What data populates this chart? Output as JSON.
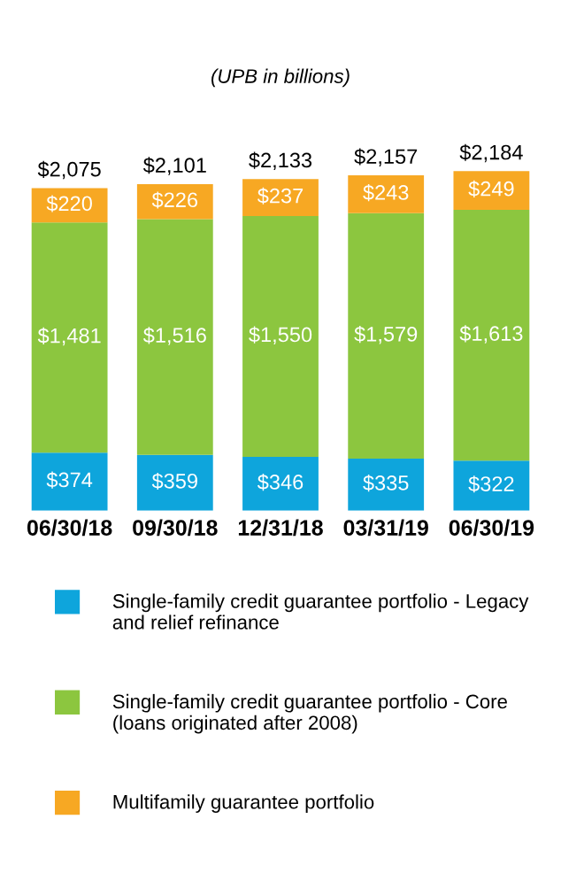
{
  "chart_data": {
    "type": "bar",
    "title": "(UPB in billions)",
    "stacked": true,
    "categories": [
      "06/30/18",
      "09/30/18",
      "12/31/18",
      "03/31/19",
      "06/30/19"
    ],
    "series": [
      {
        "name": "Single-family credit guarantee portfolio - Legacy and relief refinance",
        "color": "#0ea5dc",
        "values": [
          374,
          359,
          346,
          335,
          322
        ],
        "value_labels": [
          "$374",
          "$359",
          "$346",
          "$335",
          "$322"
        ]
      },
      {
        "name": "Single-family credit guarantee portfolio - Core (loans originated after 2008)",
        "color": "#8cc63f",
        "values": [
          1481,
          1516,
          1550,
          1579,
          1613
        ],
        "value_labels": [
          "$1,481",
          "$1,516",
          "$1,550",
          "$1,579",
          "$1,613"
        ]
      },
      {
        "name": "Multifamily guarantee portfolio",
        "color": "#f7a823",
        "values": [
          220,
          226,
          237,
          243,
          249
        ],
        "value_labels": [
          "$220",
          "$226",
          "$237",
          "$243",
          "$249"
        ]
      }
    ],
    "totals": [
      "$2,075",
      "$2,101",
      "$2,133",
      "$2,157",
      "$2,184"
    ],
    "legend": "bottom",
    "grid": false
  }
}
